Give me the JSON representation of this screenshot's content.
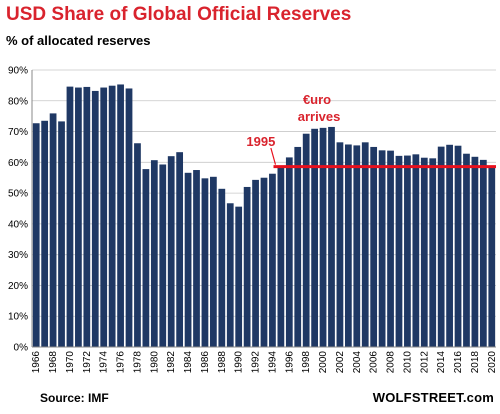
{
  "header": {
    "title": "USD Share of Global  Official Reserves",
    "subtitle": "% of allocated reserves"
  },
  "footer": {
    "source": "Source: IMF",
    "brand": "WOLFSTREET.com"
  },
  "colors": {
    "bar": "#1f3864",
    "title": "#d9232d",
    "annotation_line": "#e8101d",
    "grid": "#c8c8c8"
  },
  "chart_data": {
    "type": "bar",
    "title": "USD Share of Global  Official Reserves",
    "ylabel": "% of allocated reserves",
    "ylim": [
      0,
      90
    ],
    "yticks": [
      "0%",
      "10%",
      "20%",
      "30%",
      "40%",
      "50%",
      "60%",
      "70%",
      "80%",
      "90%"
    ],
    "grid": true,
    "categories": [
      "1966",
      "1967",
      "1968",
      "1969",
      "1970",
      "1971",
      "1972",
      "1973",
      "1974",
      "1975",
      "1976",
      "1977",
      "1978",
      "1979",
      "1980",
      "1981",
      "1982",
      "1983",
      "1984",
      "1985",
      "1986",
      "1987",
      "1988",
      "1989",
      "1990",
      "1991",
      "1992",
      "1993",
      "1994",
      "1995",
      "1996",
      "1997",
      "1998",
      "1999",
      "2000",
      "2001",
      "2002",
      "2003",
      "2004",
      "2005",
      "2006",
      "2007",
      "2008",
      "2009",
      "2010",
      "2011",
      "2012",
      "2013",
      "2014",
      "2015",
      "2016",
      "2017",
      "2018",
      "2019",
      "2020"
    ],
    "xtick_labels": [
      "1966",
      "1968",
      "1970",
      "1972",
      "1974",
      "1976",
      "1978",
      "1980",
      "1982",
      "1984",
      "1986",
      "1988",
      "1990",
      "1992",
      "1994",
      "1996",
      "1998",
      "2000",
      "2002",
      "2004",
      "2006",
      "2008",
      "2010",
      "2012",
      "2014",
      "2016",
      "2018",
      "2020"
    ],
    "values": [
      72.7,
      73.5,
      75.9,
      73.3,
      84.6,
      84.3,
      84.5,
      83.2,
      84.3,
      84.9,
      85.3,
      84.0,
      66.2,
      57.8,
      60.7,
      59.3,
      62.0,
      63.3,
      56.6,
      57.5,
      54.8,
      55.3,
      51.4,
      46.7,
      45.6,
      52.0,
      54.3,
      55.0,
      56.3,
      58.8,
      61.6,
      65.0,
      69.3,
      70.9,
      71.2,
      71.5,
      66.5,
      65.8,
      65.5,
      66.5,
      65.0,
      63.9,
      63.8,
      62.1,
      62.2,
      62.6,
      61.5,
      61.3,
      65.1,
      65.7,
      65.4,
      62.8,
      61.8,
      60.8,
      58.9
    ],
    "annotations": [
      {
        "text": "1995",
        "from_category": "1995",
        "y": 58.6
      },
      {
        "text": "€uro",
        "category": "2000"
      },
      {
        "text": "arrives",
        "category": "2000"
      }
    ]
  }
}
